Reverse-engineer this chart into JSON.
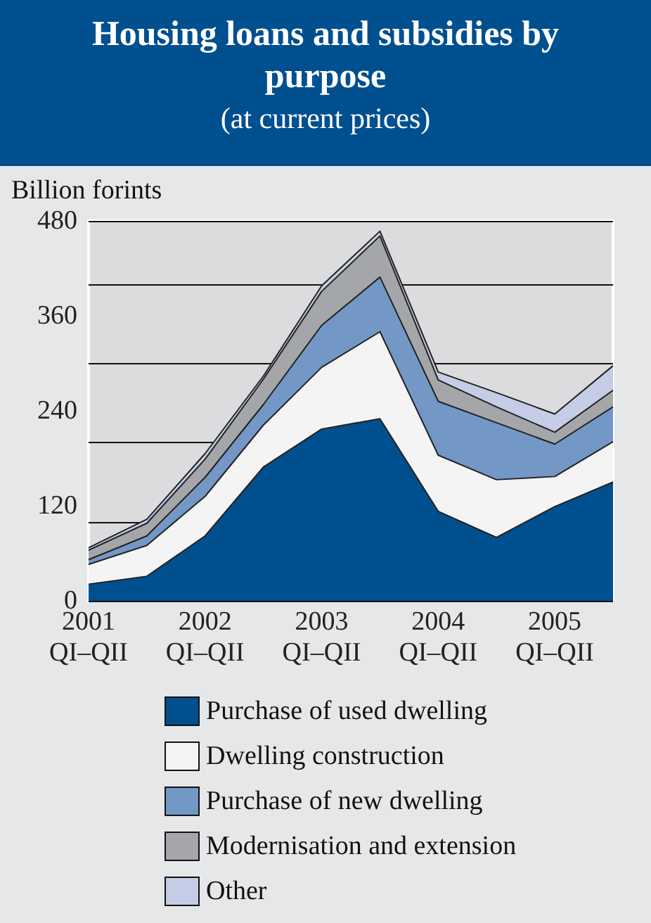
{
  "chart_data": {
    "type": "area",
    "title": "Housing loans and subsidies by purpose",
    "subtitle": "(at current prices)",
    "ylabel": "Billion forints",
    "categories": [
      "2001\nQI–QII",
      null,
      "2002\nQI–QII",
      null,
      "2003\nQI–QII",
      null,
      "2004\nQI–QII",
      null,
      "2005\nQI–QII",
      null
    ],
    "series": [
      {
        "name": "Purchase of used dwelling",
        "color": "#00508f",
        "values": [
          21,
          31,
          82,
          169,
          217,
          230,
          113,
          80,
          119,
          150
        ]
      },
      {
        "name": "Dwelling construction",
        "color": "#f4f4f5",
        "values": [
          25,
          39,
          50,
          53,
          78,
          110,
          71,
          73,
          38,
          51
        ]
      },
      {
        "name": "Purchase of new dwelling",
        "color": "#7398c6",
        "values": [
          6,
          12,
          24,
          26,
          53,
          69,
          68,
          72,
          41,
          44
        ]
      },
      {
        "name": "Modernisation and extension",
        "color": "#a5a6a9",
        "values": [
          12,
          16,
          23,
          32,
          43,
          52,
          27,
          20,
          15,
          21
        ]
      },
      {
        "name": "Other",
        "color": "#c5cde6",
        "values": [
          3,
          5,
          7,
          4,
          7,
          6,
          10,
          18,
          23,
          31
        ]
      }
    ],
    "stacked": true,
    "ylim": [
      0,
      480
    ],
    "yticks": [
      0,
      120,
      240,
      360,
      480
    ],
    "grid": "y",
    "legend": "bottom"
  }
}
